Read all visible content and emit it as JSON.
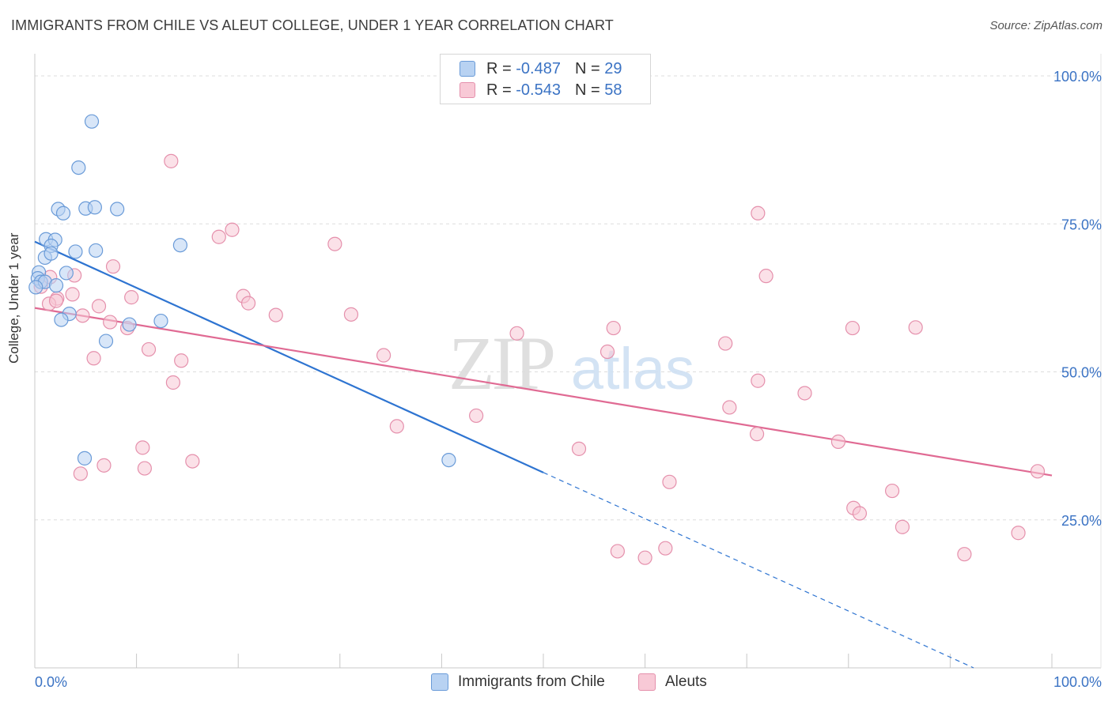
{
  "title": "IMMIGRANTS FROM CHILE VS ALEUT COLLEGE, UNDER 1 YEAR CORRELATION CHART",
  "source": "Source: ZipAtlas.com",
  "watermark": {
    "zip": "ZIP",
    "atlas": "atlas"
  },
  "legend": {
    "rows": [
      {
        "r_label": "R =",
        "r_value": "-0.487",
        "n_label": "N =",
        "n_value": "29"
      },
      {
        "r_label": "R =",
        "r_value": "-0.543",
        "n_label": "N =",
        "n_value": "58"
      }
    ]
  },
  "colors": {
    "blue_fill": "#b8d2f2",
    "blue_stroke": "#6a9bd8",
    "blue_line": "#2e74d1",
    "pink_fill": "#f8c9d6",
    "pink_stroke": "#e590ac",
    "pink_line": "#e06a93",
    "axis_label": "#3b73c4",
    "grid": "#dddddd"
  },
  "chart_data": {
    "type": "scatter",
    "title": "IMMIGRANTS FROM CHILE VS ALEUT COLLEGE, UNDER 1 YEAR CORRELATION CHART",
    "xlabel": "",
    "ylabel": "College, Under 1 year",
    "xlim": [
      0,
      100
    ],
    "ylim": [
      0,
      100
    ],
    "x_tick_labels": [
      "0.0%",
      "100.0%"
    ],
    "y_tick_labels": [
      "25.0%",
      "50.0%",
      "75.0%",
      "100.0%"
    ],
    "y_ticks": [
      25,
      50,
      75,
      100
    ],
    "legend_position": "top-center",
    "series": [
      {
        "name": "Immigrants from Chile",
        "r": -0.487,
        "n": 29,
        "points": [
          [
            5.6,
            92.3
          ],
          [
            4.3,
            84.5
          ],
          [
            2.3,
            77.5
          ],
          [
            2.8,
            76.8
          ],
          [
            5.0,
            77.6
          ],
          [
            5.9,
            77.8
          ],
          [
            8.1,
            77.5
          ],
          [
            1.1,
            72.4
          ],
          [
            2.0,
            72.3
          ],
          [
            1.6,
            71.3
          ],
          [
            4.0,
            70.3
          ],
          [
            6.0,
            70.5
          ],
          [
            14.3,
            71.4
          ],
          [
            1.0,
            69.3
          ],
          [
            1.6,
            70.0
          ],
          [
            0.4,
            66.8
          ],
          [
            0.3,
            65.8
          ],
          [
            0.6,
            65.2
          ],
          [
            1.0,
            65.2
          ],
          [
            3.1,
            66.7
          ],
          [
            2.1,
            64.6
          ],
          [
            0.1,
            64.3
          ],
          [
            3.4,
            59.8
          ],
          [
            2.6,
            58.8
          ],
          [
            12.4,
            58.6
          ],
          [
            9.3,
            58.0
          ],
          [
            7.0,
            55.2
          ],
          [
            4.9,
            35.4
          ],
          [
            40.7,
            35.1
          ]
        ],
        "trend": {
          "x": [
            0,
            50
          ],
          "y": [
            72.0,
            33.0
          ],
          "dashed_to": [
            100,
            -6.0
          ]
        }
      },
      {
        "name": "Aleuts",
        "r": -0.543,
        "n": 58,
        "points": [
          [
            13.4,
            85.6
          ],
          [
            19.4,
            74.0
          ],
          [
            18.1,
            72.8
          ],
          [
            29.5,
            71.6
          ],
          [
            7.7,
            67.8
          ],
          [
            3.9,
            66.3
          ],
          [
            1.5,
            66.0
          ],
          [
            0.6,
            64.4
          ],
          [
            3.7,
            63.1
          ],
          [
            2.2,
            62.4
          ],
          [
            1.4,
            61.5
          ],
          [
            9.5,
            62.6
          ],
          [
            20.5,
            62.8
          ],
          [
            21.0,
            61.6
          ],
          [
            6.3,
            61.1
          ],
          [
            4.7,
            59.5
          ],
          [
            23.7,
            59.6
          ],
          [
            31.1,
            59.7
          ],
          [
            7.4,
            58.4
          ],
          [
            9.1,
            57.4
          ],
          [
            11.2,
            53.8
          ],
          [
            5.8,
            52.3
          ],
          [
            14.4,
            51.9
          ],
          [
            34.3,
            52.8
          ],
          [
            47.4,
            56.5
          ],
          [
            56.3,
            53.4
          ],
          [
            56.9,
            57.4
          ],
          [
            67.9,
            54.8
          ],
          [
            80.4,
            57.4
          ],
          [
            86.6,
            57.5
          ],
          [
            13.6,
            48.2
          ],
          [
            71.1,
            76.8
          ],
          [
            71.9,
            66.2
          ],
          [
            71.1,
            48.5
          ],
          [
            75.7,
            46.4
          ],
          [
            68.3,
            44.0
          ],
          [
            35.6,
            40.8
          ],
          [
            43.4,
            42.6
          ],
          [
            53.5,
            37.0
          ],
          [
            71.0,
            39.5
          ],
          [
            79.0,
            38.2
          ],
          [
            10.6,
            37.2
          ],
          [
            10.8,
            33.7
          ],
          [
            15.5,
            34.9
          ],
          [
            6.8,
            34.2
          ],
          [
            4.5,
            32.8
          ],
          [
            62.4,
            31.4
          ],
          [
            84.3,
            29.9
          ],
          [
            80.5,
            27.0
          ],
          [
            81.1,
            26.1
          ],
          [
            85.3,
            23.8
          ],
          [
            98.6,
            33.2
          ],
          [
            96.7,
            22.8
          ],
          [
            91.4,
            19.2
          ],
          [
            57.3,
            19.7
          ],
          [
            60.0,
            18.6
          ],
          [
            62.0,
            20.2
          ],
          [
            2.1,
            62.0
          ]
        ],
        "trend": {
          "x": [
            0,
            100
          ],
          "y": [
            60.8,
            32.5
          ]
        }
      }
    ]
  }
}
